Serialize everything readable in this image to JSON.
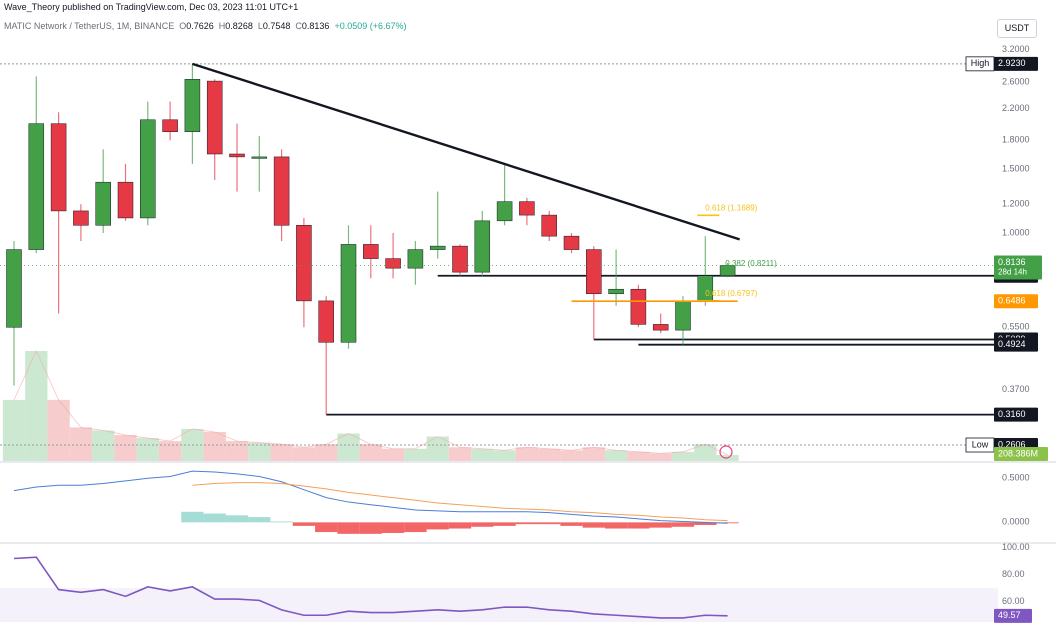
{
  "header": {
    "published": "Wave_Theory published on TradingView.com, Dec 03, 2023 11:01 UTC+1",
    "symbol": "MATIC Network / TetherUS, 1M, BINANCE",
    "o_label": "O",
    "o": "0.7626",
    "h_label": "H",
    "h": "0.8268",
    "l_label": "L",
    "l": "0.7548",
    "c_label": "C",
    "c": "0.8136",
    "change": "+0.0509 (+6.67%)"
  },
  "currency_button": "USDT",
  "colors": {
    "up": "#43a047",
    "down": "#e53945",
    "vol_up": "#c4e4c8",
    "vol_down": "#f6c3c3",
    "trendline": "#131722",
    "fib": "#f7c21a",
    "orange": "#ff9800",
    "macd": "#4a7ed8",
    "signal": "#f5a05a",
    "rsi": "#7e57c2"
  },
  "chart_data": [
    {
      "type": "candlestick",
      "scale": "log",
      "y_ticks": [
        "3.2000",
        "2.6000",
        "2.2000",
        "1.8000",
        "1.5000",
        "1.2000",
        "1.0000",
        "0.5500",
        "0.3700"
      ],
      "ylim": [
        0.24,
        3.4
      ],
      "candles": [
        {
          "o": 0.55,
          "h": 0.95,
          "l": 0.38,
          "c": 0.9
        },
        {
          "o": 0.9,
          "h": 2.7,
          "l": 0.88,
          "c": 2.0
        },
        {
          "o": 2.0,
          "h": 2.15,
          "l": 0.6,
          "c": 1.15
        },
        {
          "o": 1.15,
          "h": 1.2,
          "l": 0.95,
          "c": 1.05
        },
        {
          "o": 1.05,
          "h": 1.7,
          "l": 1.0,
          "c": 1.38
        },
        {
          "o": 1.38,
          "h": 1.55,
          "l": 1.08,
          "c": 1.1
        },
        {
          "o": 1.1,
          "h": 2.3,
          "l": 1.05,
          "c": 2.05
        },
        {
          "o": 2.05,
          "h": 2.3,
          "l": 1.8,
          "c": 1.9
        },
        {
          "o": 1.9,
          "h": 2.923,
          "l": 1.55,
          "c": 2.65
        },
        {
          "o": 2.62,
          "h": 2.65,
          "l": 1.4,
          "c": 1.65
        },
        {
          "o": 1.65,
          "h": 2.0,
          "l": 1.3,
          "c": 1.62
        },
        {
          "o": 1.62,
          "h": 1.85,
          "l": 1.3,
          "c": 1.62
        },
        {
          "o": 1.62,
          "h": 1.7,
          "l": 0.95,
          "c": 1.05
        },
        {
          "o": 1.05,
          "h": 1.1,
          "l": 0.55,
          "c": 0.65
        },
        {
          "o": 0.65,
          "h": 0.67,
          "l": 0.316,
          "c": 0.5
        },
        {
          "o": 0.5,
          "h": 1.05,
          "l": 0.48,
          "c": 0.93
        },
        {
          "o": 0.93,
          "h": 1.05,
          "l": 0.75,
          "c": 0.85
        },
        {
          "o": 0.85,
          "h": 1.0,
          "l": 0.75,
          "c": 0.8
        },
        {
          "o": 0.8,
          "h": 0.95,
          "l": 0.72,
          "c": 0.9
        },
        {
          "o": 0.9,
          "h": 1.3,
          "l": 0.85,
          "c": 0.92
        },
        {
          "o": 0.92,
          "h": 0.93,
          "l": 0.76,
          "c": 0.78
        },
        {
          "o": 0.78,
          "h": 1.15,
          "l": 0.76,
          "c": 1.08
        },
        {
          "o": 1.08,
          "h": 1.55,
          "l": 1.05,
          "c": 1.22
        },
        {
          "o": 1.22,
          "h": 1.25,
          "l": 1.05,
          "c": 1.12
        },
        {
          "o": 1.12,
          "h": 1.15,
          "l": 0.95,
          "c": 0.98
        },
        {
          "o": 0.98,
          "h": 1.0,
          "l": 0.88,
          "c": 0.9
        },
        {
          "o": 0.9,
          "h": 0.92,
          "l": 0.5089,
          "c": 0.68
        },
        {
          "o": 0.68,
          "h": 0.9,
          "l": 0.63,
          "c": 0.7
        },
        {
          "o": 0.7,
          "h": 0.72,
          "l": 0.55,
          "c": 0.56
        },
        {
          "o": 0.56,
          "h": 0.6,
          "l": 0.53,
          "c": 0.54
        },
        {
          "o": 0.54,
          "h": 0.67,
          "l": 0.4924,
          "c": 0.65
        },
        {
          "o": 0.65,
          "h": 0.98,
          "l": 0.63,
          "c": 0.7626
        },
        {
          "o": 0.7626,
          "h": 0.8268,
          "l": 0.7548,
          "c": 0.8136
        }
      ],
      "trendline": {
        "from_candle": 8,
        "from_price": 2.923,
        "to_candle": 32,
        "to_price": 0.96
      },
      "levels": [
        {
          "label": "High",
          "value": "2.9230",
          "price": 2.923,
          "style": "dotted",
          "from_candle": 0
        },
        {
          "value": "0.7624",
          "price": 0.7624,
          "style": "solid",
          "from_candle": 19
        },
        {
          "value": "0.5089",
          "price": 0.5089,
          "style": "solid",
          "from_candle": 26
        },
        {
          "value": "0.4924",
          "price": 0.4924,
          "style": "solid",
          "from_candle": 28
        },
        {
          "value": "0.3160",
          "price": 0.316,
          "style": "solid",
          "from_candle": 14
        },
        {
          "label": "Low",
          "value": "0.2606",
          "price": 0.2606,
          "style": "dotted",
          "from_candle": 0
        }
      ],
      "price_tag": {
        "value": "0.8136",
        "countdown": "28d 14h"
      },
      "orange_tag": {
        "value": "0.6486",
        "price": 0.6486
      },
      "fib_labels": [
        {
          "text": "0.618 (1.1689)",
          "price": 1.1689
        },
        {
          "text": "0.382 (0.8211)",
          "price": 0.8211
        },
        {
          "text": "0.618 (0.6797)",
          "price": 0.6797
        }
      ],
      "volume": {
        "last_label": "208.386M",
        "values": [
          40,
          72,
          40,
          22,
          20,
          17,
          15,
          13,
          21,
          19,
          13,
          12,
          11,
          9,
          11,
          18,
          11,
          8,
          8,
          16,
          9,
          8,
          7,
          9,
          8,
          7,
          9,
          7,
          6,
          5,
          6,
          11,
          4
        ]
      }
    },
    {
      "type": "line",
      "name": "MACD",
      "y_ticks": [
        "0.5000",
        "0.0000"
      ],
      "ylim": [
        -0.2,
        0.65
      ],
      "macd": [
        0.36,
        0.4,
        0.42,
        0.42,
        0.44,
        0.47,
        0.5,
        0.52,
        0.58,
        0.57,
        0.55,
        0.52,
        0.46,
        0.37,
        0.28,
        0.23,
        0.2,
        0.17,
        0.14,
        0.13,
        0.12,
        0.12,
        0.12,
        0.12,
        0.11,
        0.09,
        0.07,
        0.06,
        0.04,
        0.02,
        0.01,
        0.0,
        -0.01
      ],
      "signal": [
        null,
        null,
        null,
        null,
        null,
        null,
        null,
        null,
        0.42,
        0.44,
        0.45,
        0.45,
        0.44,
        0.41,
        0.38,
        0.34,
        0.31,
        0.28,
        0.25,
        0.22,
        0.2,
        0.18,
        0.16,
        0.15,
        0.14,
        0.12,
        0.11,
        0.09,
        0.08,
        0.06,
        0.05,
        0.03,
        0.02
      ],
      "histogram": [
        null,
        null,
        null,
        null,
        null,
        null,
        null,
        null,
        0.12,
        0.1,
        0.08,
        0.06,
        0.01,
        -0.04,
        -0.11,
        -0.13,
        -0.13,
        -0.12,
        -0.11,
        -0.08,
        -0.07,
        -0.05,
        -0.04,
        -0.02,
        -0.02,
        -0.04,
        -0.06,
        -0.07,
        -0.07,
        -0.06,
        -0.05,
        -0.03,
        -0.01
      ]
    },
    {
      "type": "line",
      "name": "RSI",
      "y_ticks": [
        "100.00",
        "80.00",
        "60.00"
      ],
      "ylim": [
        45,
        102
      ],
      "values": [
        92,
        93,
        69,
        67,
        69,
        64,
        71,
        68,
        71,
        62,
        62,
        61,
        54,
        50,
        50,
        53,
        52,
        52,
        53,
        54,
        53,
        54,
        56,
        56,
        54,
        53,
        51,
        50,
        49,
        48,
        48,
        50,
        49.57
      ],
      "last_label": "49.57",
      "band": [
        70,
        30
      ]
    }
  ]
}
